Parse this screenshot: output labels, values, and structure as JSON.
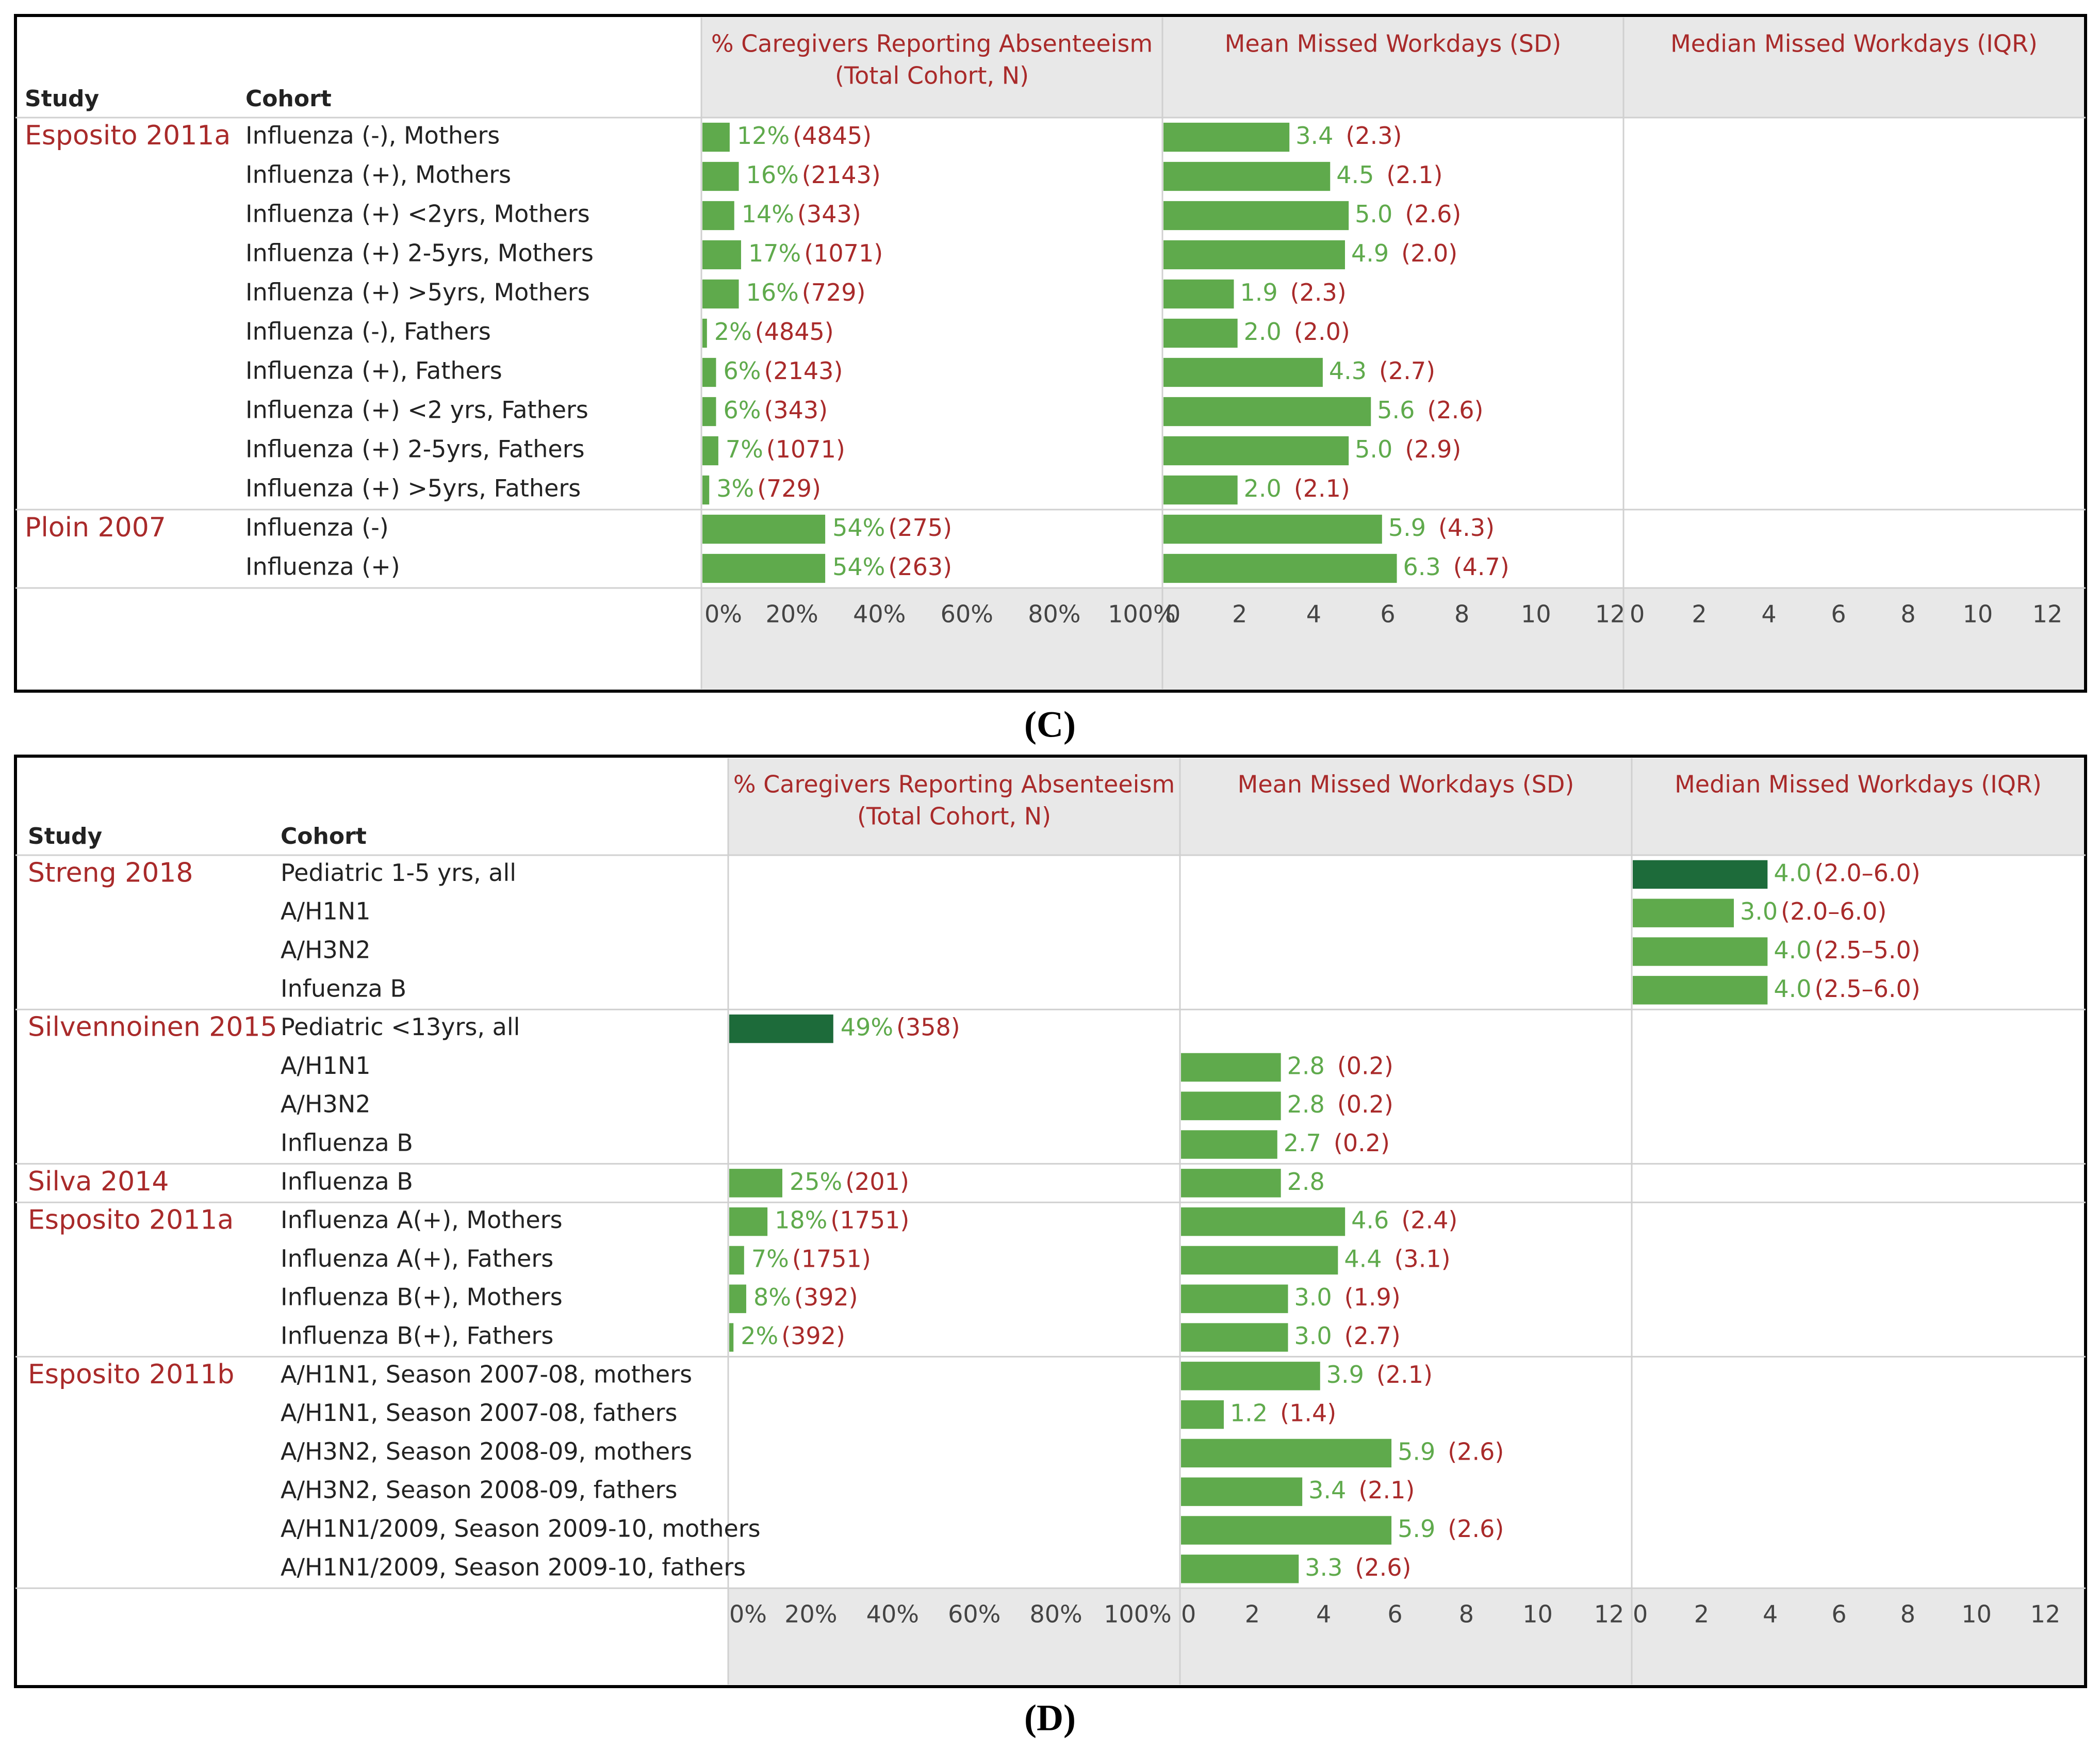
{
  "colors": {
    "bar": "#5faa4c",
    "bar_dark": "#1d6b3a",
    "text_green": "#5faa4c",
    "text_red": "#a92a2a",
    "header_text": "#a92a2a",
    "axis_bg": "#e8e8e8",
    "grid": "#d0d0d0",
    "border": "#000000",
    "label_text": "#222222"
  },
  "chart_data": [
    {
      "type": "bar",
      "panel_label": "(C)",
      "headers": {
        "study": "Study",
        "cohort": "Cohort",
        "percent": "% Caregivers Reporting Absenteeism (Total Cohort, N)",
        "percent_line1": "% Caregivers Reporting Absenteeism",
        "percent_line2": "(Total Cohort, N)",
        "mean": "Mean Missed Workdays (SD)",
        "median": "Median Missed Workdays (IQR)"
      },
      "axes": {
        "percent": {
          "xlim": [
            0,
            100
          ],
          "ticks": [
            "0%",
            "20%",
            "40%",
            "60%",
            "80%",
            "100%"
          ]
        },
        "mean": {
          "xlim": [
            0,
            12
          ],
          "ticks": [
            "0",
            "2",
            "4",
            "6",
            "8",
            "10",
            "12"
          ]
        },
        "median": {
          "xlim": [
            0,
            12
          ],
          "ticks": [
            "0",
            "2",
            "4",
            "6",
            "8",
            "10",
            "12"
          ]
        }
      },
      "groups": [
        {
          "study": "Esposito 2011a",
          "rows": [
            {
              "cohort": "Influenza (-), Mothers",
              "pct": 12,
              "n": "(4845)",
              "mean": 3.4,
              "sd": "(2.3)"
            },
            {
              "cohort": "Influenza (+), Mothers",
              "pct": 16,
              "n": "(2143)",
              "mean": 4.5,
              "sd": "(2.1)"
            },
            {
              "cohort": "Influenza (+) <2yrs, Mothers",
              "pct": 14,
              "n": "(343)",
              "mean": 5.0,
              "sd": "(2.6)"
            },
            {
              "cohort": "Influenza (+) 2-5yrs, Mothers",
              "pct": 17,
              "n": "(1071)",
              "mean": 4.9,
              "sd": "(2.0)"
            },
            {
              "cohort": "Influenza (+) >5yrs, Mothers",
              "pct": 16,
              "n": "(729)",
              "mean": 1.9,
              "sd": "(2.3)"
            },
            {
              "cohort": "Influenza (-), Fathers",
              "pct": 2,
              "n": "(4845)",
              "mean": 2.0,
              "sd": "(2.0)"
            },
            {
              "cohort": "Influenza (+), Fathers",
              "pct": 6,
              "n": "(2143)",
              "mean": 4.3,
              "sd": "(2.7)"
            },
            {
              "cohort": "Influenza (+) <2 yrs, Fathers",
              "pct": 6,
              "n": "(343)",
              "mean": 5.6,
              "sd": "(2.6)"
            },
            {
              "cohort": "Influenza (+) 2-5yrs, Fathers",
              "pct": 7,
              "n": "(1071)",
              "mean": 5.0,
              "sd": "(2.9)"
            },
            {
              "cohort": "Influenza (+) >5yrs, Fathers",
              "pct": 3,
              "n": "(729)",
              "mean": 2.0,
              "sd": "(2.1)"
            }
          ]
        },
        {
          "study": "Ploin 2007",
          "rows": [
            {
              "cohort": "Influenza (-)",
              "pct": 54,
              "n": "(275)",
              "mean": 5.9,
              "sd": "(4.3)"
            },
            {
              "cohort": "Influenza (+)",
              "pct": 54,
              "n": "(263)",
              "mean": 6.3,
              "sd": "(4.7)"
            }
          ]
        }
      ]
    },
    {
      "type": "bar",
      "panel_label": "(D)",
      "headers": {
        "study": "Study",
        "cohort": "Cohort",
        "percent": "% Caregivers Reporting Absenteeism (Total Cohort, N)",
        "percent_line1": "% Caregivers Reporting Absenteeism",
        "percent_line2": "(Total Cohort, N)",
        "mean": "Mean Missed Workdays (SD)",
        "median": "Median Missed Workdays (IQR)"
      },
      "axes": {
        "percent": {
          "xlim": [
            0,
            100
          ],
          "ticks": [
            "0%",
            "20%",
            "40%",
            "60%",
            "80%",
            "100%"
          ]
        },
        "mean": {
          "xlim": [
            0,
            12
          ],
          "ticks": [
            "0",
            "2",
            "4",
            "6",
            "8",
            "10",
            "12"
          ]
        },
        "median": {
          "xlim": [
            0,
            12
          ],
          "ticks": [
            "0",
            "2",
            "4",
            "6",
            "8",
            "10",
            "12"
          ]
        }
      },
      "groups": [
        {
          "study": "Streng  2018",
          "rows": [
            {
              "cohort": "Pediatric 1-5 yrs, all",
              "median": 4.0,
              "iqr": "(2.0–6.0)",
              "summary": true
            },
            {
              "cohort": "A/H1N1",
              "median": 3.0,
              "iqr": "(2.0–6.0)"
            },
            {
              "cohort": "A/H3N2",
              "median": 4.0,
              "iqr": "(2.5–5.0)"
            },
            {
              "cohort": "Infuenza B",
              "median": 4.0,
              "iqr": "(2.5–6.0)"
            }
          ]
        },
        {
          "study": "Silvennoinen 2015",
          "rows": [
            {
              "cohort": "Pediatric <13yrs, all",
              "pct": 49,
              "n": "(358)",
              "summary": true
            },
            {
              "cohort": "A/H1N1",
              "mean": 2.8,
              "sd": "(0.2)"
            },
            {
              "cohort": "A/H3N2",
              "mean": 2.8,
              "sd": "(0.2)"
            },
            {
              "cohort": "Influenza B",
              "mean": 2.7,
              "sd": "(0.2)"
            }
          ]
        },
        {
          "study": "Silva 2014",
          "rows": [
            {
              "cohort": "Influenza B",
              "pct": 25,
              "n": "(201)",
              "mean": 2.8
            }
          ]
        },
        {
          "study": "Esposito 2011a",
          "rows": [
            {
              "cohort": "Influenza A(+), Mothers",
              "pct": 18,
              "n": "(1751)",
              "mean": 4.6,
              "sd": "(2.4)"
            },
            {
              "cohort": "Influenza A(+), Fathers",
              "pct": 7,
              "n": "(1751)",
              "mean": 4.4,
              "sd": "(3.1)"
            },
            {
              "cohort": "Influenza B(+), Mothers",
              "pct": 8,
              "n": "(392)",
              "mean": 3.0,
              "sd": "(1.9)"
            },
            {
              "cohort": "Influenza B(+), Fathers",
              "pct": 2,
              "n": "(392)",
              "mean": 3.0,
              "sd": "(2.7)"
            }
          ]
        },
        {
          "study": "Esposito 2011b",
          "rows": [
            {
              "cohort": "A/H1N1, Season 2007-08, mothers",
              "mean": 3.9,
              "sd": "(2.1)"
            },
            {
              "cohort": "A/H1N1, Season 2007-08, fathers",
              "mean": 1.2,
              "sd": "(1.4)"
            },
            {
              "cohort": "A/H3N2, Season 2008-09, mothers",
              "mean": 5.9,
              "sd": "(2.6)"
            },
            {
              "cohort": "A/H3N2, Season 2008-09, fathers",
              "mean": 3.4,
              "sd": "(2.1)"
            },
            {
              "cohort": "A/H1N1/2009, Season 2009-10, mothers",
              "mean": 5.9,
              "sd": "(2.6)"
            },
            {
              "cohort": "A/H1N1/2009, Season 2009-10, fathers",
              "mean": 3.3,
              "sd": "(2.6)"
            }
          ]
        }
      ]
    }
  ]
}
